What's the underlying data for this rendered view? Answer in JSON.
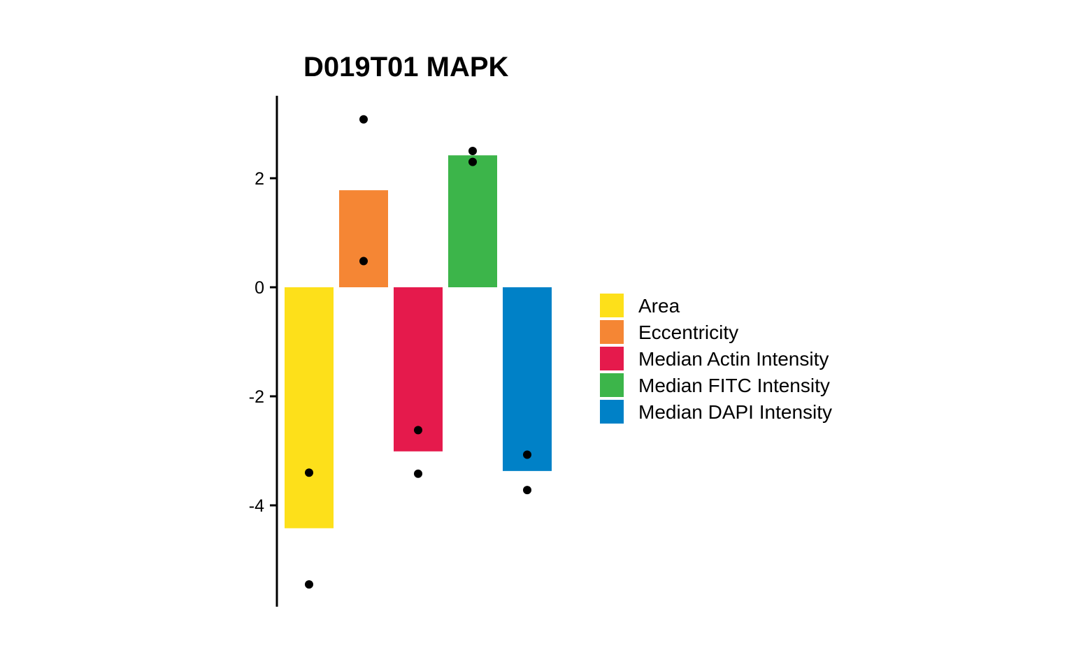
{
  "chart_data": {
    "type": "bar",
    "title": "D019T01 MAPK",
    "xlabel": "",
    "ylabel": "",
    "ylim": [
      -5.85,
      3.5
    ],
    "yticks": [
      2,
      0,
      -2,
      -4
    ],
    "ytick_labels": [
      "2",
      "0",
      "-2",
      "-4"
    ],
    "grid": false,
    "legend_position": "right",
    "categories": [
      "Area",
      "Eccentricity",
      "Median Actin Intensity",
      "Median FITC Intensity",
      "Median DAPI Intensity"
    ],
    "values": [
      -4.42,
      1.78,
      -3.01,
      2.42,
      -3.37
    ],
    "colors": [
      "#FDE01A",
      "#F58634",
      "#E51A4C",
      "#3CB54A",
      "#0081C7"
    ],
    "points": [
      [
        -3.4,
        -5.45
      ],
      [
        3.08,
        0.48
      ],
      [
        -2.62,
        -3.42
      ],
      [
        2.5,
        2.3
      ],
      [
        -3.07,
        -3.72
      ]
    ]
  }
}
